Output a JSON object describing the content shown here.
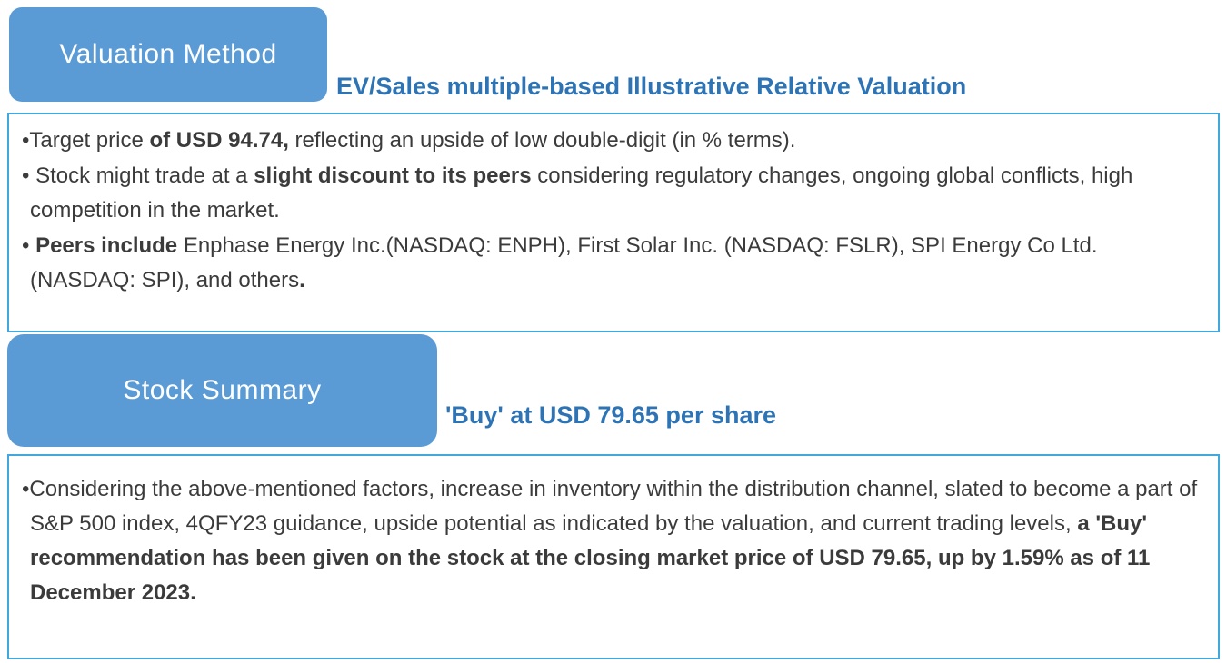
{
  "theme": {
    "accent_blue": "#5b9bd5",
    "heading_blue": "#2e74b5",
    "border_blue": "#41a7dc",
    "body_text": "#3b3b3b"
  },
  "sections": [
    {
      "tab_label": "Valuation Method",
      "heading": "EV/Sales multiple-based Illustrative Relative Valuation",
      "bullets": [
        {
          "segments": [
            {
              "text": "•Target price ",
              "bold": false
            },
            {
              "text": "of USD 94.74,",
              "bold": true
            },
            {
              "text": " reflecting an upside of low double-digit (in % terms).",
              "bold": false
            }
          ]
        },
        {
          "segments": [
            {
              "text": "• Stock might trade at a ",
              "bold": false
            },
            {
              "text": "slight discount to its peers",
              "bold": true
            },
            {
              "text": " considering regulatory changes, ongoing global conflicts, high competition in the market.",
              "bold": false
            }
          ]
        },
        {
          "segments": [
            {
              "text": "• ",
              "bold": false
            },
            {
              "text": "Peers include",
              "bold": true
            },
            {
              "text": " Enphase Energy Inc.(NASDAQ: ENPH), First Solar Inc. (NASDAQ: FSLR), SPI Energy Co Ltd. (NASDAQ: SPI), and others",
              "bold": false
            },
            {
              "text": ".",
              "bold": true
            }
          ]
        }
      ]
    },
    {
      "tab_label": "Stock Summary",
      "heading": "'Buy' at USD 79.65 per share",
      "bullets": [
        {
          "segments": [
            {
              "text": "•Considering the above-mentioned factors, increase in inventory within the distribution channel, slated to become a part of S&P 500 index, 4QFY23 guidance, upside potential as indicated by the valuation, and current trading levels, ",
              "bold": false
            },
            {
              "text": "a 'Buy' recommendation has been given on the stock at the closing market price of USD 79.65, up by 1.59% as of 11 December 2023.",
              "bold": true
            }
          ]
        }
      ]
    }
  ]
}
